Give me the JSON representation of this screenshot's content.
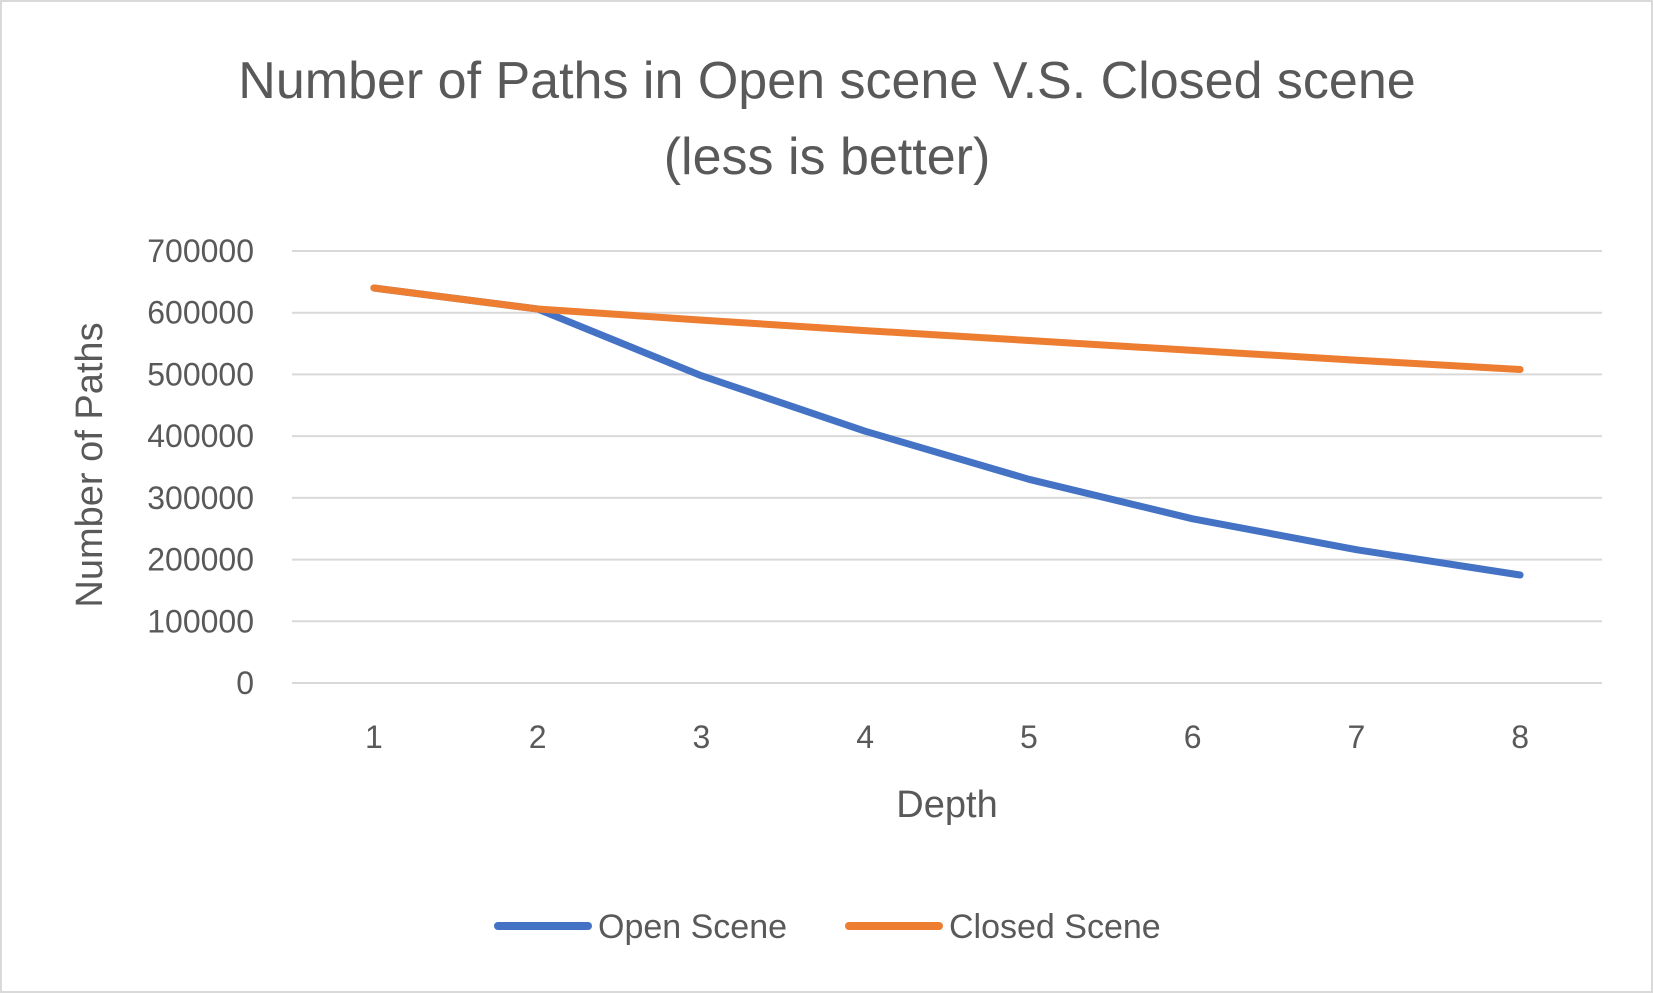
{
  "chart_data": {
    "type": "line",
    "title": "Number of Paths in Open scene V.S. Closed scene",
    "subtitle": "(less is better)",
    "xlabel": "Depth",
    "ylabel": "Number of Paths",
    "categories": [
      "1",
      "2",
      "3",
      "4",
      "5",
      "6",
      "7",
      "8"
    ],
    "ylim": [
      0,
      700000
    ],
    "yticks": [
      "0",
      "100000",
      "200000",
      "300000",
      "400000",
      "500000",
      "600000",
      "700000"
    ],
    "grid": true,
    "legend": "bottom",
    "series": [
      {
        "name": "Open Scene",
        "color": "#4472C4",
        "values": [
          640000,
          606000,
          498000,
          408000,
          330000,
          266000,
          216000,
          175000
        ]
      },
      {
        "name": "Closed Scene",
        "color": "#ED7D31",
        "values": [
          640000,
          606000,
          588000,
          571000,
          555000,
          539000,
          523000,
          508000
        ]
      }
    ]
  }
}
